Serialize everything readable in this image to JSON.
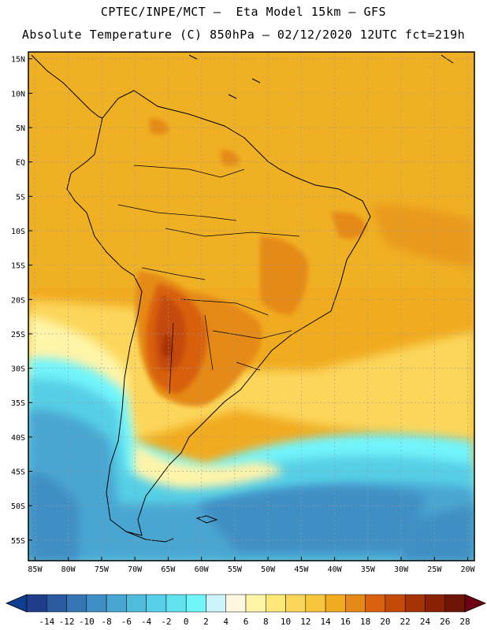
{
  "header": {
    "line1": "CPTEC/INPE/MCT –  Eta Model 15km – GFS",
    "line2": "Absolute Temperature (C) 850hPa – 02/12/2020 12UTC fct=219h"
  },
  "map": {
    "lat_labels": [
      "15N",
      "10N",
      "5N",
      "EQ",
      "5S",
      "10S",
      "15S",
      "20S",
      "25S",
      "30S",
      "35S",
      "40S",
      "45S",
      "50S",
      "55S"
    ],
    "lat_values": [
      15,
      10,
      5,
      0,
      -5,
      -10,
      -15,
      -20,
      -25,
      -30,
      -35,
      -40,
      -45,
      -50,
      -55
    ],
    "lon_labels": [
      "85W",
      "80W",
      "75W",
      "70W",
      "65W",
      "60W",
      "55W",
      "50W",
      "45W",
      "40W",
      "35W",
      "30W",
      "25W",
      "20W"
    ],
    "lon_values": [
      -85,
      -80,
      -75,
      -70,
      -65,
      -60,
      -55,
      -50,
      -45,
      -40,
      -35,
      -30,
      -25,
      -20
    ],
    "lat_range": [
      -58,
      16
    ],
    "lon_range": [
      -86,
      -19
    ]
  },
  "colorbar": {
    "labels": [
      "-14",
      "-12",
      "-10",
      "-8",
      "-6",
      "-4",
      "-2",
      "0",
      "2",
      "4",
      "6",
      "8",
      "10",
      "12",
      "14",
      "16",
      "18",
      "20",
      "22",
      "24",
      "26",
      "28"
    ],
    "colors": [
      "#1f3d8a",
      "#2a5aa0",
      "#3575b3",
      "#3f8fc4",
      "#48a6d2",
      "#4fbcdc",
      "#57cfe6",
      "#62e2ef",
      "#72f4fb",
      "#cdf3fb",
      "#fff7e0",
      "#fff4a8",
      "#ffe879",
      "#fcd65a",
      "#f6c63c",
      "#f1ab1f",
      "#e58a17",
      "#d8600e",
      "#c44a08",
      "#a63306",
      "#8a2004",
      "#6e1505"
    ],
    "low_color": "#0e3d92",
    "high_color": "#6e0015"
  }
}
